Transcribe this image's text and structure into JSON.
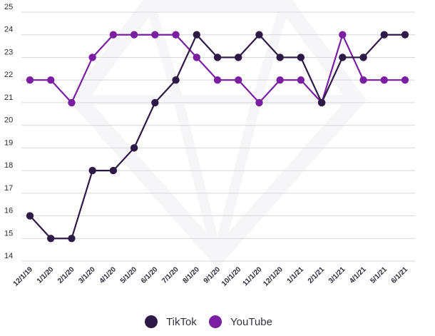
{
  "chart_data": {
    "type": "line",
    "title": "",
    "xlabel": "",
    "ylabel": "",
    "categories": [
      "12/1/19",
      "1/1/20",
      "2/1/20",
      "3/1/20",
      "4/1/20",
      "5/1/20",
      "6/1/20",
      "7/1/20",
      "8/1/20",
      "9/1/20",
      "10/1/20",
      "11/1/20",
      "12/1/20",
      "1/1/21",
      "2/1/21",
      "3/1/21",
      "4/1/21",
      "5/1/21",
      "6/1/21"
    ],
    "yticks": [
      14,
      15,
      16,
      17,
      18,
      19,
      20,
      21,
      22,
      23,
      24,
      25
    ],
    "ylim": [
      14,
      25
    ],
    "grid": true,
    "legend_position": "bottom-center",
    "series": [
      {
        "name": "TikTok",
        "color": "#2e1a47",
        "values": [
          16,
          15,
          15,
          18,
          18,
          19,
          21,
          22,
          24,
          23,
          23,
          24,
          23,
          23,
          21,
          23,
          23,
          24,
          24
        ]
      },
      {
        "name": "YouTube",
        "color": "#7a1fa2",
        "values": [
          22,
          22,
          21,
          23,
          24,
          24,
          24,
          24,
          23,
          22,
          22,
          21,
          22,
          22,
          21,
          24,
          22,
          22,
          22
        ]
      }
    ],
    "legend": [
      "TikTok",
      "YouTube"
    ]
  }
}
